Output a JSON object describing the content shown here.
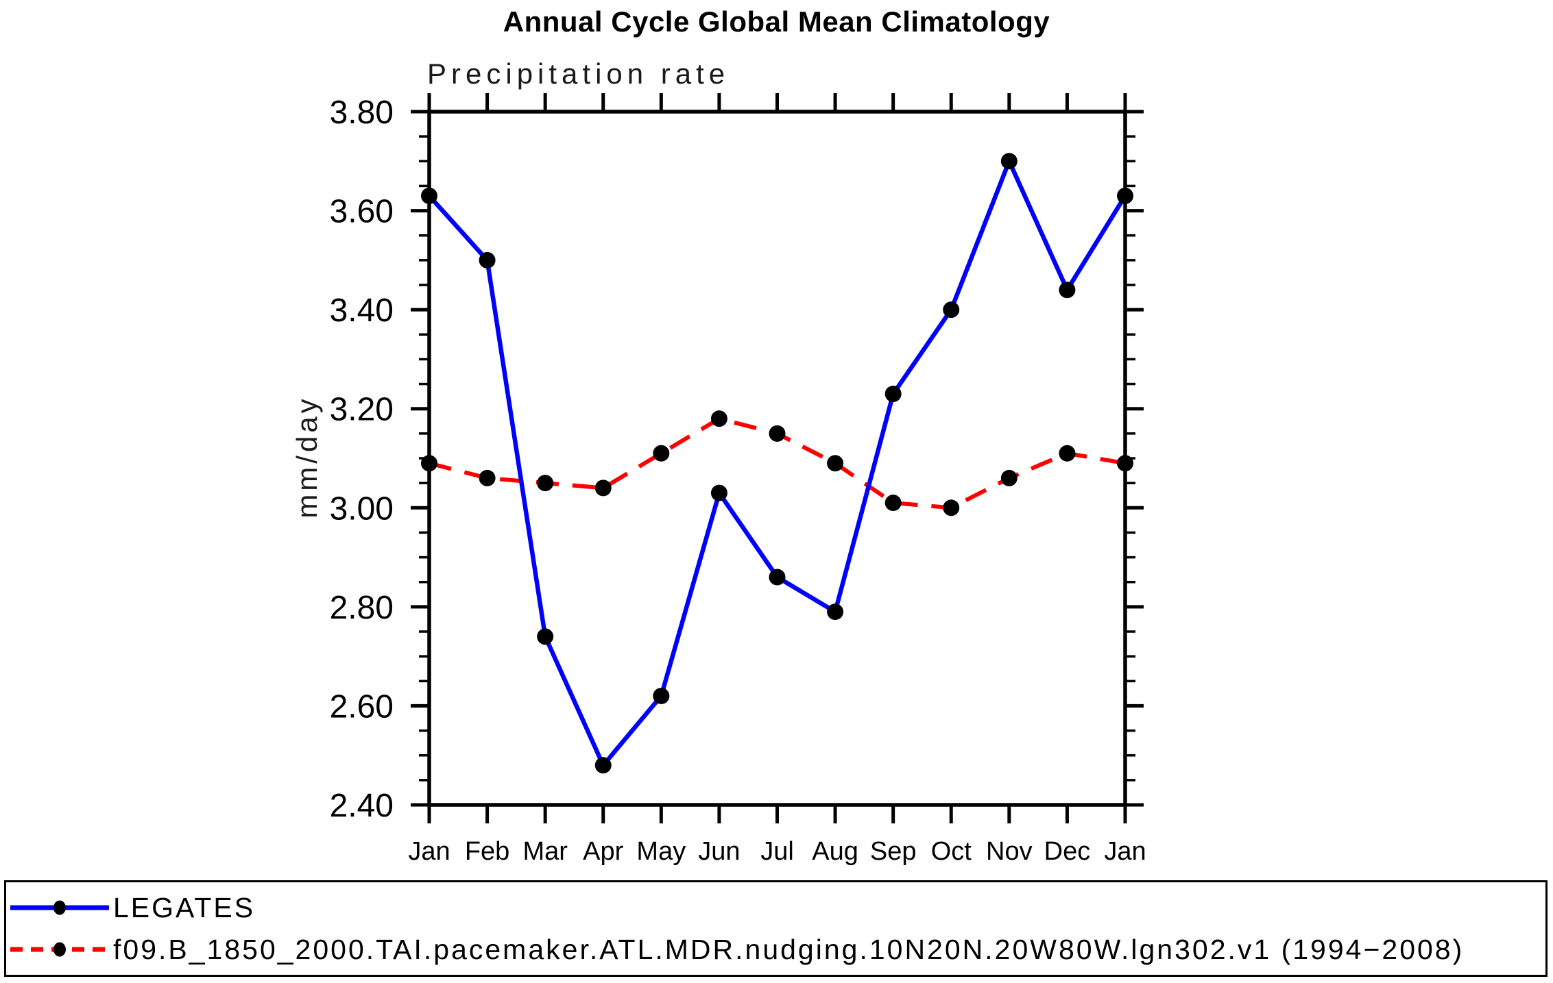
{
  "chart": {
    "title": "Annual Cycle Global Mean Climatology",
    "subtitle": "Precipitation rate",
    "ylabel": "mm/day"
  },
  "chart_data": {
    "type": "line",
    "title": "Annual Cycle Global Mean Climatology",
    "subtitle": "Precipitation rate",
    "xlabel": "",
    "ylabel": "mm/day",
    "ylim": [
      2.4,
      3.8
    ],
    "ytick_major_step": 0.2,
    "ytick_minor_step": 0.05,
    "yticklabels": [
      "3.80",
      "3.60",
      "3.40",
      "3.20",
      "3.00",
      "2.80",
      "2.60",
      "2.40"
    ],
    "categories": [
      "Jan",
      "Feb",
      "Mar",
      "Apr",
      "May",
      "Jun",
      "Jul",
      "Aug",
      "Sep",
      "Oct",
      "Nov",
      "Dec",
      "Jan"
    ],
    "grid": false,
    "legend_position": "bottom",
    "frame_color": "#000000",
    "series": [
      {
        "name": "LEGATES",
        "color": "#0000ff",
        "style": "solid",
        "marker": "filled-circle",
        "marker_color": "#000000",
        "values": [
          3.63,
          3.5,
          2.74,
          2.48,
          2.62,
          3.03,
          2.86,
          2.79,
          3.23,
          3.4,
          3.7,
          3.44,
          3.63
        ]
      },
      {
        "name": "f09.B_1850_2000.TAI.pacemaker.ATL.MDR.nudging.10N20N.20W80W.lgn302.v1 (1994−2008)",
        "color": "#ff0000",
        "style": "dashed",
        "marker": "filled-circle",
        "marker_color": "#000000",
        "values": [
          3.09,
          3.06,
          3.05,
          3.04,
          3.11,
          3.18,
          3.15,
          3.09,
          3.01,
          3.0,
          3.06,
          3.11,
          3.09
        ]
      }
    ]
  }
}
